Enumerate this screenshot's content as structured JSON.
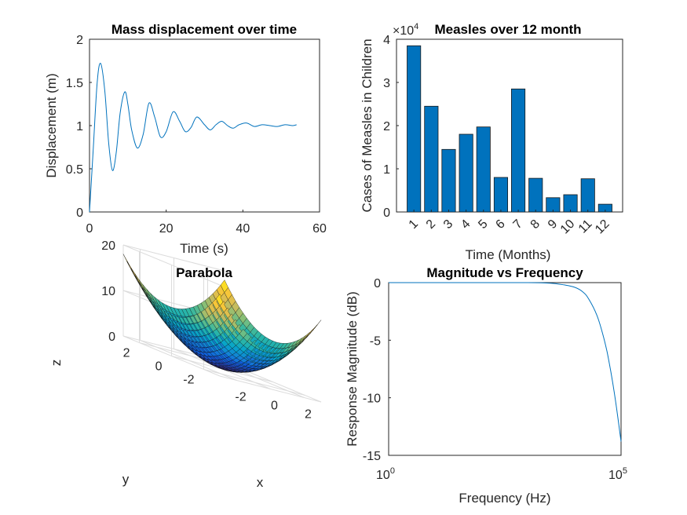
{
  "chart_data": [
    {
      "type": "line",
      "title": "Mass displacement over time",
      "xlabel": "Time (s)",
      "ylabel": "Displacement (m)",
      "xlim": [
        0,
        60
      ],
      "ylim": [
        0,
        2
      ],
      "xticks": [
        "0",
        "20",
        "40",
        "60"
      ],
      "yticks": [
        "0",
        "0.5",
        "1",
        "1.5",
        "2"
      ],
      "grid": false,
      "color": "#0072BD",
      "x": [
        0,
        1,
        2,
        2.9,
        4,
        5,
        6,
        7,
        8,
        9.2,
        10,
        11,
        12.5,
        14,
        15.5,
        17,
        18.5,
        20,
        21.8,
        23.5,
        25,
        26.5,
        28,
        30,
        31.5,
        33,
        34.5,
        36,
        37.5,
        39,
        41,
        43,
        45,
        47,
        49,
        51,
        53,
        54
      ],
      "values": [
        0,
        0.75,
        1.5,
        1.72,
        1.4,
        0.8,
        0.48,
        0.7,
        1.15,
        1.39,
        1.25,
        0.95,
        0.74,
        0.9,
        1.26,
        1.1,
        0.87,
        0.93,
        1.16,
        1.05,
        0.93,
        0.98,
        1.1,
        1.01,
        0.95,
        1.01,
        1.05,
        1.0,
        0.97,
        1.01,
        1.03,
        0.99,
        1.01,
        1.0,
        0.99,
        1.01,
        1.0,
        1.01
      ]
    },
    {
      "type": "bar",
      "title": "Measles over 12 month",
      "xlabel": "Time (Months)",
      "ylabel": "Cases of Measles in Children",
      "exponent_label": "×10",
      "exponent_value": "4",
      "categories": [
        "1",
        "2",
        "3",
        "4",
        "5",
        "6",
        "7",
        "8",
        "9",
        "10",
        "11",
        "12"
      ],
      "values": [
        38.5,
        24.5,
        14.5,
        18,
        19.7,
        8,
        28.5,
        7.8,
        3.3,
        4,
        7.7,
        1.8
      ],
      "ylim": [
        0,
        40
      ],
      "yticks": [
        "0",
        "1",
        "2",
        "3",
        "4"
      ],
      "grid": false,
      "color": "#0072BD"
    },
    {
      "type": "surface",
      "title": "Parabola",
      "xlabel": "x",
      "ylabel": "y",
      "zlabel": "z",
      "function": "z = x^2 + y^2",
      "xlim": [
        -3,
        3
      ],
      "ylim": [
        -3,
        3
      ],
      "zlim": [
        0,
        20
      ],
      "xticks": [
        "-2",
        "0",
        "2"
      ],
      "yticks": [
        "-2",
        "0",
        "2"
      ],
      "zticks": [
        "0",
        "10",
        "20"
      ],
      "grid": true,
      "colormap": [
        "#352A87",
        "#0F5CDD",
        "#1481D6",
        "#06A4CA",
        "#2EB7A4",
        "#87BF77",
        "#D1BB59",
        "#FEC832",
        "#F9FB0E"
      ]
    },
    {
      "type": "line",
      "title": "Magnitude vs Frequency",
      "xlabel": "Frequency (Hz)",
      "ylabel": "Response Magnitude (dB)",
      "xscale": "log",
      "xlim": [
        1,
        100000
      ],
      "ylim": [
        -15,
        0
      ],
      "xtick_base": "10",
      "xtick_exponents": [
        "0",
        "5"
      ],
      "yticks": [
        "0",
        "-5",
        "-10",
        "-15"
      ],
      "grid": false,
      "color": "#0072BD",
      "x": [
        1,
        10,
        100,
        1000,
        3000,
        6000,
        10000,
        15000,
        20000,
        30000,
        40000,
        50000,
        60000,
        70000,
        80000,
        90000,
        100000
      ],
      "values": [
        0,
        0,
        0,
        0,
        -0.05,
        -0.2,
        -0.4,
        -0.8,
        -1.4,
        -2.8,
        -4.4,
        -6.0,
        -7.7,
        -9.3,
        -10.9,
        -12.4,
        -13.8
      ]
    }
  ]
}
